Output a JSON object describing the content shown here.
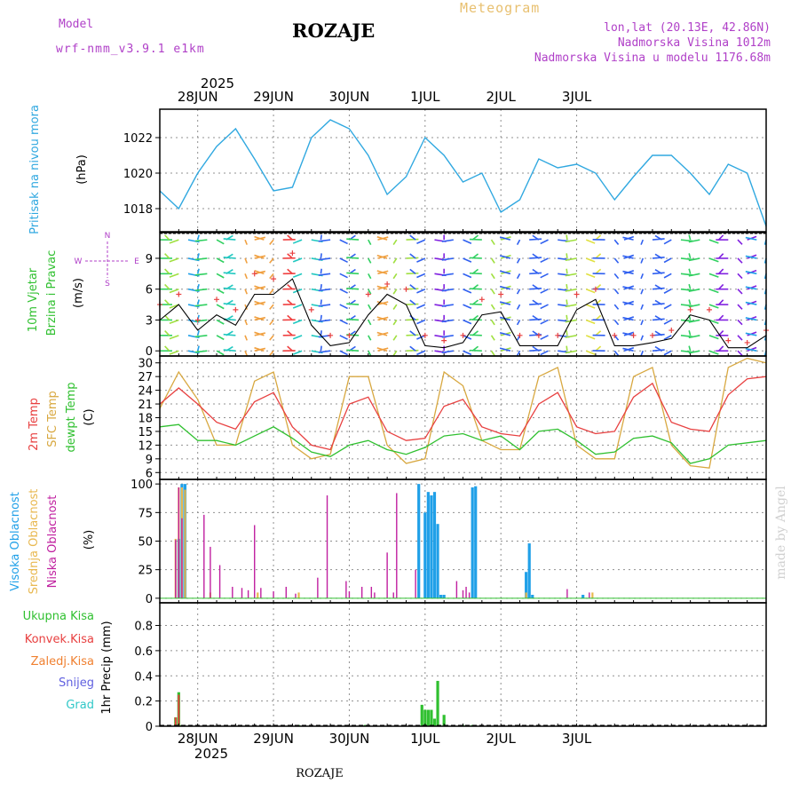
{
  "header": {
    "model_label": "Model",
    "model_name": "wrf-nmm_v3.9.1 e1km",
    "title": "ROZAJE",
    "meteogram_label": "Meteogram",
    "location": "lon,lat (20.13E, 42.86N)",
    "altitude": "Nadmorska Visina 1012m",
    "model_altitude": "Nadmorska Visina u modelu 1176.68m"
  },
  "colors": {
    "pressure": "#30a8e0",
    "temp2m": "#e84040",
    "sfc_temp": "#d8a840",
    "dewpoint": "#30c030",
    "high_cloud": "#20a0e8",
    "mid_cloud": "#e8b850",
    "low_cloud": "#c020a0",
    "total_precip": "#30c030",
    "conv_precip": "#e84040",
    "frozen_precip": "#f08030",
    "snow": "#6060e0",
    "hail": "#30c8c8",
    "wind_speed_line": "#000000",
    "gust_marks": "#e84040",
    "grid": "#909090"
  },
  "footer": {
    "station": "ROZAJE",
    "credit": "made by Angel"
  },
  "chart_data": [
    {
      "id": "pressure",
      "type": "line",
      "ylabel": [
        "Pritisak na nivou mora",
        "(hPa)"
      ],
      "yticks": [
        1018,
        1020,
        1022
      ],
      "ylim": [
        1016.7,
        1023.6
      ],
      "x_top_year": "2025",
      "x_top_labels": [
        "28JUN",
        "29JUN",
        "30JUN",
        "1JUL",
        "2JUL",
        "3JUL"
      ],
      "x": [
        0,
        6,
        12,
        18,
        24,
        30,
        36,
        42,
        48,
        54,
        60,
        66,
        72,
        78,
        84,
        90,
        96,
        102,
        108,
        114,
        120,
        126,
        132,
        138,
        144,
        150,
        156,
        162,
        168,
        174,
        180,
        186,
        192
      ],
      "series": [
        {
          "values": [
            1019.0,
            1018.0,
            1020.0,
            1021.5,
            1022.5,
            1020.8,
            1019.0,
            1019.2,
            1022.0,
            1023.0,
            1022.5,
            1021.0,
            1018.8,
            1019.8,
            1022.0,
            1021.0,
            1019.5,
            1020.0,
            1017.8,
            1018.5,
            1020.8,
            1020.3,
            1020.5,
            1020.0,
            1018.5,
            1019.8,
            1021.0,
            1021.0,
            1020.0,
            1018.8,
            1020.5,
            1020.0,
            1017.0
          ]
        }
      ]
    },
    {
      "id": "wind",
      "type": "line",
      "ylabel": [
        "10m Vjetar",
        "Brzina i Pravac",
        "(m/s)"
      ],
      "compass": [
        "N",
        "S",
        "W",
        "E"
      ],
      "yticks": [
        0,
        3,
        6,
        9
      ],
      "ylim": [
        -0.5,
        11.5
      ],
      "x": [
        0,
        6,
        12,
        18,
        24,
        30,
        36,
        42,
        48,
        54,
        60,
        66,
        72,
        78,
        84,
        90,
        96,
        102,
        108,
        114,
        120,
        126,
        132,
        138,
        144,
        150,
        156,
        162,
        168,
        174,
        180,
        186,
        192
      ],
      "series": [
        {
          "values": [
            3.0,
            4.5,
            2.0,
            3.5,
            2.5,
            5.5,
            5.5,
            7.0,
            2.5,
            0.5,
            0.8,
            3.5,
            5.5,
            4.5,
            0.5,
            0.3,
            0.8,
            3.5,
            3.8,
            0.5,
            0.5,
            0.5,
            4.0,
            5.0,
            0.5,
            0.5,
            0.8,
            1.2,
            3.5,
            3.0,
            0.3,
            0.3,
            1.5
          ]
        },
        {
          "values": [
            4.5,
            5.5,
            3.0,
            5.0,
            4.0,
            7.5,
            7.0,
            9.5,
            4.0,
            1.5,
            1.5,
            5.5,
            6.5,
            6.0,
            1.5,
            1.0,
            1.5,
            5.0,
            5.5,
            1.5,
            1.5,
            1.5,
            5.5,
            6.0,
            1.5,
            1.5,
            1.5,
            2.0,
            4.0,
            4.0,
            1.0,
            0.8,
            2.0
          ]
        }
      ]
    },
    {
      "id": "temperature",
      "type": "line",
      "ylabel": [
        "2m Temp",
        "SFC Temp",
        "dewpt Temp",
        "(C)"
      ],
      "yticks": [
        6,
        9,
        12,
        15,
        18,
        21,
        24,
        27,
        30
      ],
      "ylim": [
        4.5,
        31.5
      ],
      "x": [
        0,
        6,
        12,
        18,
        24,
        30,
        36,
        42,
        48,
        54,
        60,
        66,
        72,
        78,
        84,
        90,
        96,
        102,
        108,
        114,
        120,
        126,
        132,
        138,
        144,
        150,
        156,
        162,
        168,
        174,
        180,
        186,
        192
      ],
      "series": [
        {
          "name": "SFC Temp",
          "values": [
            20.0,
            28.0,
            22.0,
            12.0,
            12.0,
            26.0,
            28.0,
            12.0,
            9.0,
            10.0,
            27.0,
            27.0,
            12.0,
            8.0,
            9.0,
            28.0,
            25.0,
            13.0,
            11.0,
            11.0,
            27.0,
            29.0,
            12.0,
            9.0,
            9.0,
            27.0,
            29.0,
            12.0,
            7.5,
            7.0,
            29.0,
            31.0,
            30.0
          ]
        },
        {
          "name": "2m Temp",
          "values": [
            21.0,
            24.5,
            21.0,
            17.0,
            15.5,
            21.5,
            23.5,
            16.0,
            12.0,
            11.0,
            21.0,
            22.5,
            15.0,
            13.0,
            13.5,
            20.5,
            22.0,
            16.0,
            14.5,
            14.0,
            21.0,
            23.5,
            16.0,
            14.5,
            15.0,
            22.5,
            25.5,
            17.0,
            15.5,
            15.0,
            23.0,
            26.5,
            27.0
          ]
        },
        {
          "name": "dewpt Temp",
          "values": [
            16.0,
            16.5,
            13.0,
            13.0,
            12.0,
            14.0,
            16.0,
            13.5,
            10.5,
            9.5,
            12.0,
            13.0,
            11.0,
            10.0,
            11.5,
            14.0,
            14.5,
            13.0,
            14.0,
            11.0,
            15.0,
            15.5,
            13.0,
            10.0,
            10.5,
            13.5,
            14.0,
            12.5,
            8.0,
            9.0,
            12.0,
            12.5,
            13.0
          ]
        }
      ]
    },
    {
      "id": "clouds",
      "type": "bar",
      "ylabel": [
        "Visoka Oblacnost",
        "Srednja Oblacnost",
        "Niska Oblacnost",
        "(%)"
      ],
      "yticks": [
        0,
        25,
        50,
        75,
        100
      ],
      "ylim": [
        -4,
        104
      ],
      "series": [
        {
          "name": "Visoka Oblacnost",
          "x": [
            6,
            7,
            8,
            82,
            84,
            85,
            86,
            87,
            88,
            89,
            90,
            99,
            100,
            116,
            117,
            118,
            134
          ],
          "values": [
            52,
            100,
            100,
            100,
            75,
            93,
            90,
            93,
            65,
            3,
            3,
            97,
            98,
            23,
            48,
            3,
            3
          ]
        },
        {
          "name": "Srednja Oblacnost",
          "x": [
            5,
            6,
            7,
            8,
            16,
            31,
            44,
            116,
            137
          ],
          "values": [
            52,
            97,
            97,
            95,
            5,
            5,
            5,
            5,
            5
          ]
        },
        {
          "name": "Niska Oblacnost",
          "x": [
            5,
            6,
            7,
            14,
            16,
            19,
            23,
            26,
            28,
            30,
            32,
            36,
            40,
            43,
            50,
            53,
            59,
            60,
            64,
            67,
            68,
            72,
            74,
            75,
            81,
            94,
            96,
            97,
            98,
            129,
            136
          ],
          "values": [
            51,
            97,
            70,
            73,
            45,
            29,
            10,
            9,
            7,
            64,
            9,
            6,
            10,
            4,
            18,
            90,
            15,
            6,
            10,
            10,
            5,
            40,
            5,
            92,
            25,
            15,
            7,
            10,
            5,
            8,
            5
          ]
        }
      ]
    },
    {
      "id": "precip",
      "type": "bar",
      "ylabel": [
        "Ukupna Kisa",
        "Konvek.Kisa",
        "Zaledj.Kisa",
        "Snijeg",
        "Grad",
        "1hr Precip (mm)"
      ],
      "yticks": [
        0,
        0.2,
        0.4,
        0.6,
        0.8
      ],
      "ylim": [
        0,
        0.98
      ],
      "x_bottom_labels": [
        "28JUN",
        "29JUN",
        "30JUN",
        "1JUL",
        "2JUL",
        "3JUL"
      ],
      "x_bottom_year": "2025",
      "series": [
        {
          "name": "Ukupna Kisa",
          "x": [
            5,
            6,
            7,
            44,
            65,
            83,
            84,
            85,
            86,
            87,
            88,
            90,
            96,
            99
          ],
          "values": [
            0.07,
            0.27,
            0.01,
            0.01,
            0.01,
            0.17,
            0.13,
            0.13,
            0.13,
            0.06,
            0.36,
            0.09,
            0.01,
            0.01
          ]
        },
        {
          "name": "Konvek.Kisa",
          "x": [
            5,
            6
          ],
          "values": [
            0.07,
            0.25
          ]
        }
      ]
    }
  ]
}
